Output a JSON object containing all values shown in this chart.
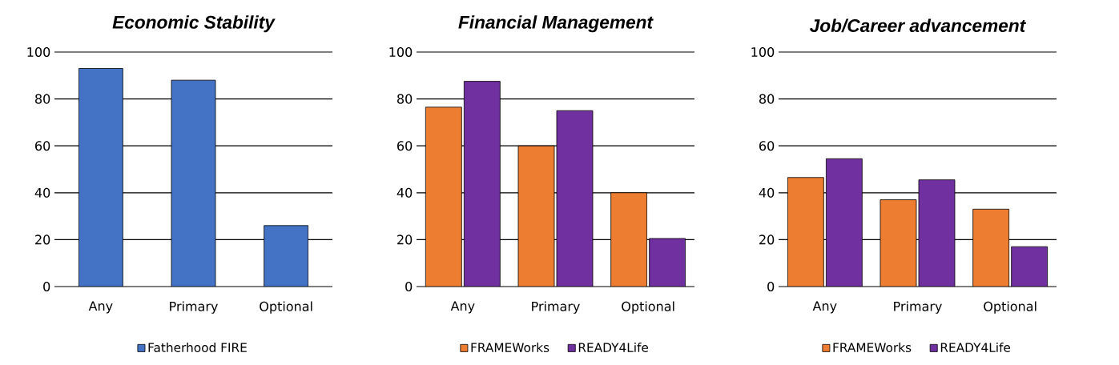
{
  "chart_data": [
    {
      "type": "bar",
      "title": "Economic Stability",
      "categories": [
        "Any",
        "Primary",
        "Optional"
      ],
      "series": [
        {
          "name": "Fatherhood FIRE",
          "color": "#4472c4",
          "values": [
            93,
            88,
            26
          ]
        }
      ],
      "ylim": [
        0,
        100
      ],
      "yticks": [
        0,
        20,
        40,
        60,
        80,
        100
      ],
      "grid": "y",
      "legend": "bottom"
    },
    {
      "type": "bar",
      "title": "Financial Management",
      "categories": [
        "Any",
        "Primary",
        "Optional"
      ],
      "series": [
        {
          "name": "FRAMEWorks",
          "color": "#ed7d31",
          "values": [
            76.5,
            60,
            40
          ]
        },
        {
          "name": "READY4Life",
          "color": "#7030a0",
          "values": [
            87.5,
            75,
            20.5
          ]
        }
      ],
      "ylim": [
        0,
        100
      ],
      "yticks": [
        0,
        20,
        40,
        60,
        80,
        100
      ],
      "grid": "y",
      "legend": "bottom"
    },
    {
      "type": "bar",
      "title": "Job/Career advancement",
      "categories": [
        "Any",
        "Primary",
        "Optional"
      ],
      "series": [
        {
          "name": "FRAMEWorks",
          "color": "#ed7d31",
          "values": [
            46.5,
            37,
            33
          ]
        },
        {
          "name": "READY4Life",
          "color": "#7030a0",
          "values": [
            54.5,
            45.5,
            17
          ]
        }
      ],
      "ylim": [
        0,
        100
      ],
      "yticks": [
        0,
        20,
        40,
        60,
        80,
        100
      ],
      "grid": "y",
      "legend": "bottom"
    }
  ]
}
